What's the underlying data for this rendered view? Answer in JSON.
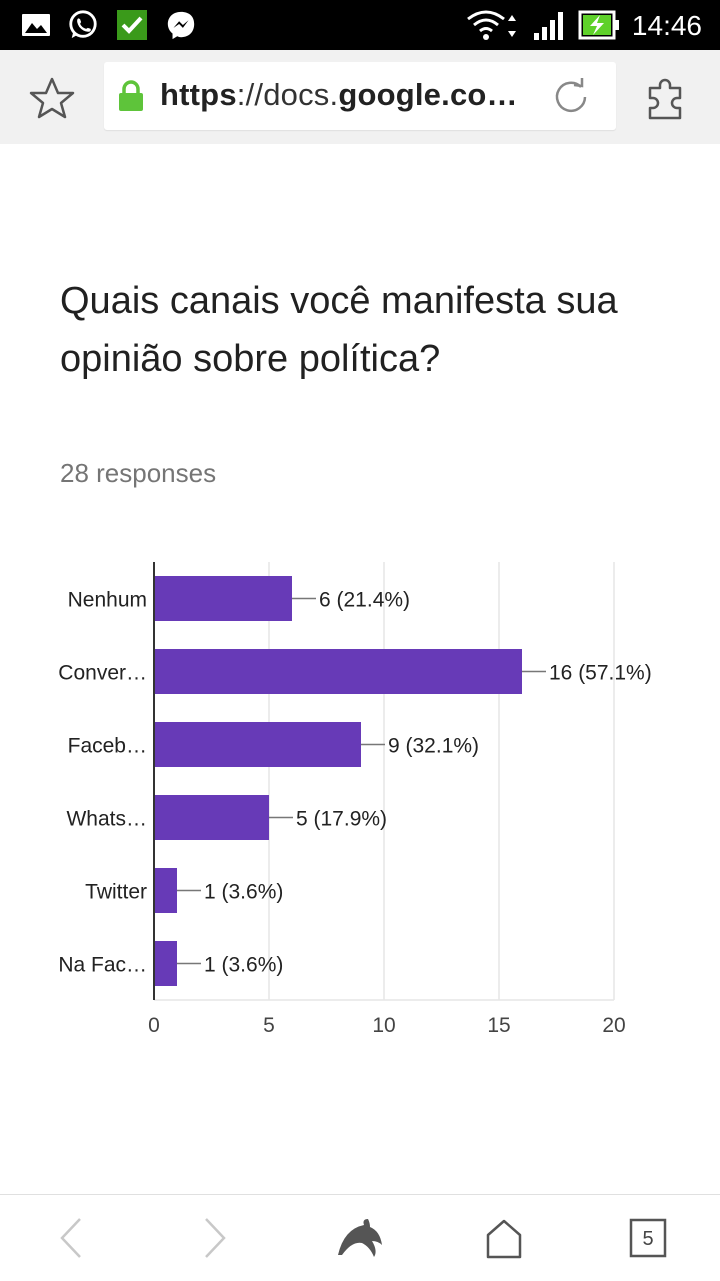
{
  "status_bar": {
    "time": "14:46",
    "icons": [
      "gallery-icon",
      "whatsapp-icon",
      "check-icon",
      "messenger-icon",
      "wifi-icon",
      "cell-signal-icon",
      "battery-charging-icon"
    ],
    "colors": {
      "check_bg": "#3a9a1a",
      "battery": "#5fd12a"
    }
  },
  "browser": {
    "url": {
      "scheme": "https",
      "rest_prefix": "://docs.",
      "domain": "google",
      "rest_suffix": ".co…"
    },
    "icons": [
      "star-icon",
      "lock-icon",
      "reload-icon",
      "extension-icon"
    ],
    "lock_color": "#5ec43a"
  },
  "form": {
    "question": "Quais canais você manifesta sua opinião sobre política?",
    "responses": "28 responses"
  },
  "chart_data": {
    "type": "bar",
    "orientation": "horizontal",
    "categories": [
      "Nenhum",
      "Conver…",
      "Faceb…",
      "Whats…",
      "Twitter",
      "Na Fac…"
    ],
    "values": [
      6,
      16,
      9,
      5,
      1,
      1
    ],
    "value_labels": [
      "6 (21.4%)",
      "16 (57.1%)",
      "9 (32.1%)",
      "5 (17.9%)",
      "1 (3.6%)",
      "1 (3.6%)"
    ],
    "x_ticks": [
      0,
      5,
      10,
      15,
      20
    ],
    "xlim": [
      0,
      20
    ],
    "grid": true,
    "bar_color": "#673ab7"
  },
  "bottom_nav": {
    "icons": [
      "back-icon",
      "forward-icon",
      "dolphin-icon",
      "home-icon",
      "tabs-icon"
    ],
    "tab_count": "5"
  }
}
